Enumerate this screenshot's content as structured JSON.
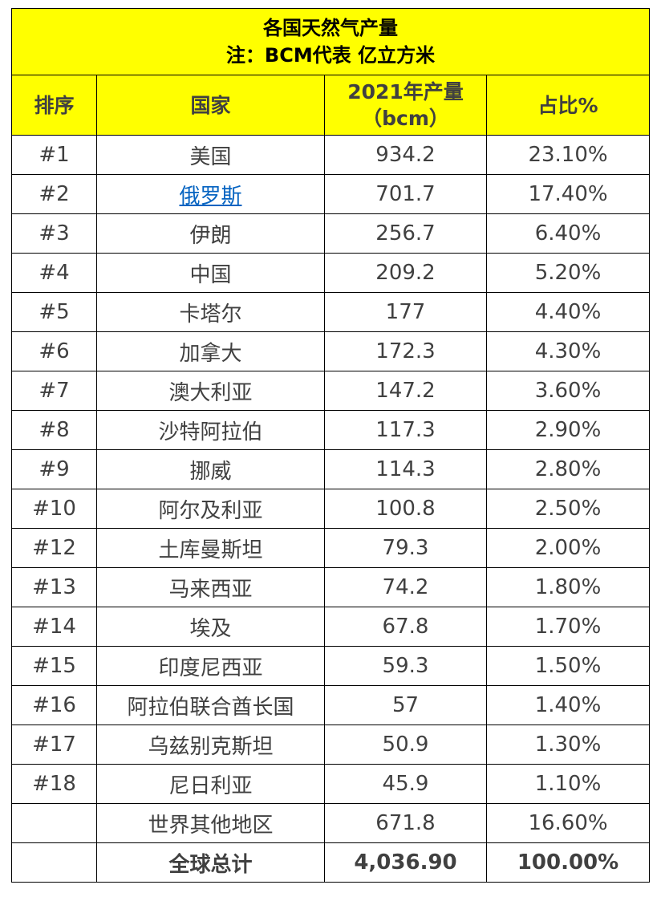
{
  "title_line1": "各国天然气产量",
  "title_line2": "注：BCM代表 亿立方米",
  "headers": {
    "rank": "排序",
    "country": "国家",
    "production_line1": "2021年产量",
    "production_line2": "（bcm）",
    "share": "占比%"
  },
  "rows": [
    {
      "rank": "#1",
      "country": "美国",
      "production": "934.2",
      "share": "23.10%"
    },
    {
      "rank": "#2",
      "country": "俄罗斯",
      "production": "701.7",
      "share": "17.40%"
    },
    {
      "rank": "#3",
      "country": "伊朗",
      "production": "256.7",
      "share": "6.40%"
    },
    {
      "rank": "#4",
      "country": "中国",
      "production": "209.2",
      "share": "5.20%"
    },
    {
      "rank": "#5",
      "country": "卡塔尔",
      "production": "177",
      "share": "4.40%"
    },
    {
      "rank": "#6",
      "country": "加拿大",
      "production": "172.3",
      "share": "4.30%"
    },
    {
      "rank": "#7",
      "country": "澳大利亚",
      "production": "147.2",
      "share": "3.60%"
    },
    {
      "rank": "#8",
      "country": "沙特阿拉伯",
      "production": "117.3",
      "share": "2.90%"
    },
    {
      "rank": "#9",
      "country": "挪威",
      "production": "114.3",
      "share": "2.80%"
    },
    {
      "rank": "#10",
      "country": "阿尔及利亚",
      "production": "100.8",
      "share": "2.50%"
    },
    {
      "rank": "#12",
      "country": "土库曼斯坦",
      "production": "79.3",
      "share": "2.00%"
    },
    {
      "rank": "#13",
      "country": "马来西亚",
      "production": "74.2",
      "share": "1.80%"
    },
    {
      "rank": "#14",
      "country": "埃及",
      "production": "67.8",
      "share": "1.70%"
    },
    {
      "rank": "#15",
      "country": "印度尼西亚",
      "production": "59.3",
      "share": "1.50%"
    },
    {
      "rank": "#16",
      "country": "阿拉伯联合酋长国",
      "production": "57",
      "share": "1.40%"
    },
    {
      "rank": "#17",
      "country": "乌兹别克斯坦",
      "production": "50.9",
      "share": "1.30%"
    },
    {
      "rank": "#18",
      "country": "尼日利亚",
      "production": "45.9",
      "share": "1.10%"
    },
    {
      "rank": "",
      "country": "世界其他地区",
      "production": "671.8",
      "share": "16.60%"
    }
  ],
  "total": {
    "rank": "",
    "label": "全球总计",
    "production": "4,036.90",
    "share": "100.00%"
  },
  "colors": {
    "header_bg": "#ffff00",
    "link": "#0563c1",
    "text": "#404040"
  }
}
